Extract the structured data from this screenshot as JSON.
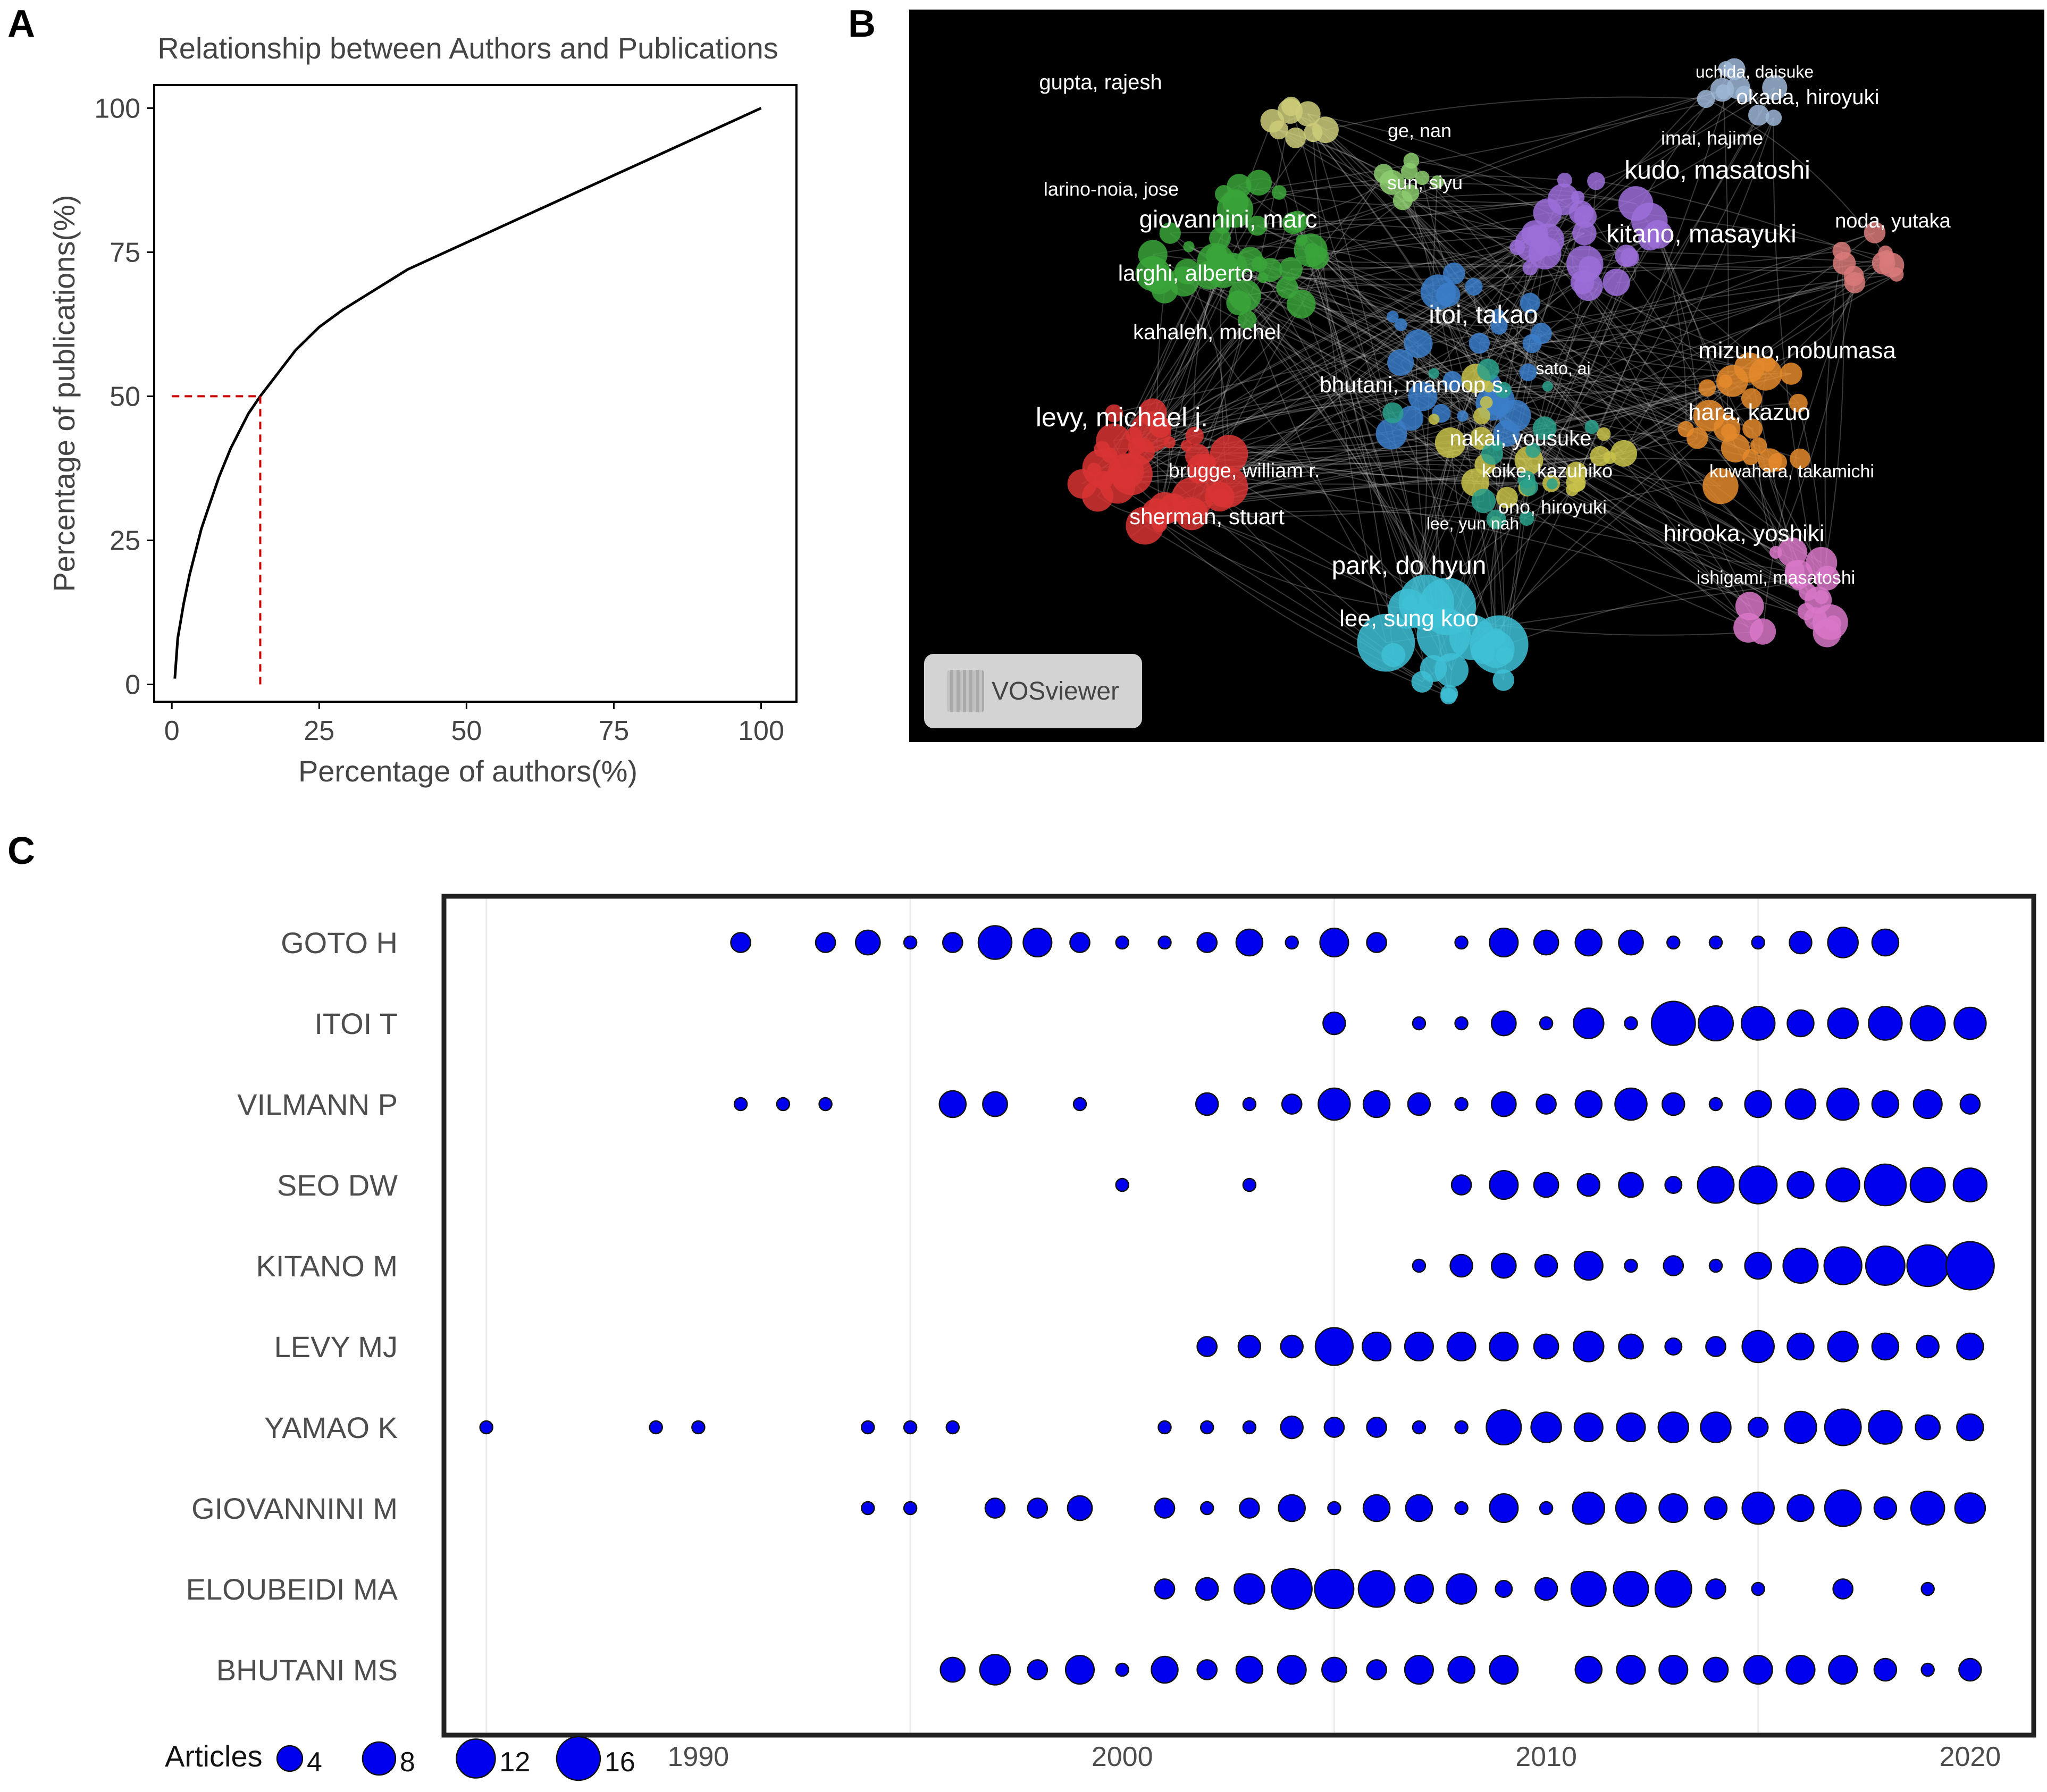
{
  "panels": {
    "a": "A",
    "b": "B",
    "c": "C"
  },
  "chart_data": [
    {
      "type": "line",
      "title": "Relationship between Authors and Publications",
      "xlabel": "Percentage of authors(%)",
      "ylabel": "Percentage of publications(%)",
      "xlim": [
        -3,
        106
      ],
      "ylim": [
        -3,
        104
      ],
      "xticks": [
        "0",
        "25",
        "50",
        "75",
        "100"
      ],
      "yticks": [
        "0",
        "25",
        "50",
        "75",
        "100"
      ],
      "x": [
        0.5,
        1,
        2,
        3,
        4,
        5,
        6,
        7,
        8,
        9,
        10,
        11,
        12,
        13,
        14,
        15,
        18,
        21,
        25,
        29,
        40,
        55,
        70,
        85,
        100
      ],
      "y": [
        1,
        8,
        14,
        19,
        23,
        27,
        30,
        33,
        36,
        38.5,
        41,
        43,
        45,
        47,
        48.5,
        50,
        54,
        58,
        62,
        65,
        72,
        79,
        86,
        93,
        100
      ],
      "reference_point": {
        "x": 15,
        "y": 50
      },
      "line_color": "#000000",
      "reference_color": "#cc0000"
    },
    {
      "type": "scatter",
      "software": "VOSviewer",
      "labels": [
        "gupta, rajesh",
        "ge, nan",
        "sun, siyu",
        "uchida, daisuke",
        "okada, hiroyuki",
        "imai, hajime",
        "kudo, masatoshi",
        "larino-noia, jose",
        "giovannini, marc",
        "noda, yutaka",
        "kitano, masayuki",
        "larghi, alberto",
        "itoi, takao",
        "kahaleh, michel",
        "mizuno, nobumasa",
        "sato, ai",
        "bhutani, manoop s.",
        "levy, michael j.",
        "hara, kazuo",
        "nakai, yousuke",
        "kuwahara, takamichi",
        "brugge, william r.",
        "koike, kazuhiko",
        "ono, hiroyuki",
        "sherman, stuart",
        "lee, yun nah",
        "hirooka, yoshiki",
        "park, do hyun",
        "ishigami, masatoshi",
        "lee, sung koo"
      ],
      "cluster_colors": [
        "#d93434",
        "#3aa53a",
        "#3b7ec9",
        "#c8c24a",
        "#9b6ed8",
        "#2aa08c",
        "#e48a2c",
        "#d877c8",
        "#d97a7a",
        "#9db7d6",
        "#cccc7a",
        "#8ccc6e",
        "#3ec1d6"
      ]
    },
    {
      "type": "scatter",
      "authors": [
        "GOTO H",
        "ITOI T",
        "VILMANN P",
        "SEO DW",
        "KITANO M",
        "LEVY MJ",
        "YAMAO K",
        "GIOVANNINI M",
        "ELOUBEIDI MA",
        "BHUTANI MS"
      ],
      "xticks": [
        "1990",
        "2000",
        "2010",
        "2020"
      ],
      "xlim": [
        1984,
        2021.5
      ],
      "legend_title": "Articles",
      "legend_sizes": [
        4,
        8,
        12,
        16
      ],
      "legend_labels": [
        "4",
        "8",
        "12",
        "16"
      ],
      "dot_color": "#0000ee",
      "points": {
        "GOTO H": [
          [
            1991,
            3
          ],
          [
            1993,
            3
          ],
          [
            1994,
            5
          ],
          [
            1995,
            1
          ],
          [
            1996,
            3
          ],
          [
            1997,
            10
          ],
          [
            1998,
            7
          ],
          [
            1999,
            3
          ],
          [
            2000,
            1
          ],
          [
            2001,
            1
          ],
          [
            2002,
            3
          ],
          [
            2003,
            6
          ],
          [
            2004,
            1
          ],
          [
            2005,
            7
          ],
          [
            2006,
            3
          ],
          [
            2008,
            1
          ],
          [
            2009,
            7
          ],
          [
            2010,
            5
          ],
          [
            2011,
            6
          ],
          [
            2012,
            5
          ],
          [
            2013,
            1
          ],
          [
            2014,
            1
          ],
          [
            2015,
            1
          ],
          [
            2016,
            4
          ],
          [
            2017,
            8
          ],
          [
            2018,
            6
          ]
        ],
        "ITOI T": [
          [
            2005,
            4
          ],
          [
            2007,
            1
          ],
          [
            2008,
            1
          ],
          [
            2009,
            5
          ],
          [
            2010,
            1
          ],
          [
            2011,
            8
          ],
          [
            2012,
            1
          ],
          [
            2013,
            18
          ],
          [
            2014,
            11
          ],
          [
            2015,
            10
          ],
          [
            2016,
            6
          ],
          [
            2017,
            8
          ],
          [
            2018,
            10
          ],
          [
            2019,
            11
          ],
          [
            2020,
            9
          ]
        ],
        "VILMANN P": [
          [
            1991,
            1
          ],
          [
            1992,
            1
          ],
          [
            1993,
            1
          ],
          [
            1996,
            6
          ],
          [
            1997,
            5
          ],
          [
            1999,
            1
          ],
          [
            2002,
            4
          ],
          [
            2003,
            1
          ],
          [
            2004,
            3
          ],
          [
            2005,
            9
          ],
          [
            2006,
            6
          ],
          [
            2007,
            4
          ],
          [
            2008,
            1
          ],
          [
            2009,
            5
          ],
          [
            2010,
            3
          ],
          [
            2011,
            6
          ],
          [
            2012,
            9
          ],
          [
            2013,
            4
          ],
          [
            2014,
            1
          ],
          [
            2015,
            6
          ],
          [
            2016,
            8
          ],
          [
            2017,
            9
          ],
          [
            2018,
            6
          ],
          [
            2019,
            7
          ],
          [
            2020,
            3
          ]
        ],
        "SEO DW": [
          [
            2000,
            1
          ],
          [
            2003,
            1
          ],
          [
            2008,
            3
          ],
          [
            2009,
            7
          ],
          [
            2010,
            5
          ],
          [
            2011,
            4
          ],
          [
            2012,
            5
          ],
          [
            2013,
            2
          ],
          [
            2014,
            12
          ],
          [
            2015,
            13
          ],
          [
            2016,
            6
          ],
          [
            2017,
            10
          ],
          [
            2018,
            16
          ],
          [
            2019,
            11
          ],
          [
            2020,
            10
          ]
        ],
        "KITANO M": [
          [
            2007,
            1
          ],
          [
            2008,
            4
          ],
          [
            2009,
            5
          ],
          [
            2010,
            4
          ],
          [
            2011,
            7
          ],
          [
            2012,
            1
          ],
          [
            2013,
            3
          ],
          [
            2014,
            1
          ],
          [
            2015,
            6
          ],
          [
            2016,
            11
          ],
          [
            2017,
            13
          ],
          [
            2018,
            14
          ],
          [
            2019,
            16
          ],
          [
            2020,
            22
          ]
        ],
        "LEVY MJ": [
          [
            2002,
            3
          ],
          [
            2003,
            4
          ],
          [
            2004,
            4
          ],
          [
            2005,
            13
          ],
          [
            2006,
            7
          ],
          [
            2007,
            7
          ],
          [
            2008,
            7
          ],
          [
            2009,
            7
          ],
          [
            2010,
            5
          ],
          [
            2011,
            8
          ],
          [
            2012,
            5
          ],
          [
            2013,
            2
          ],
          [
            2014,
            3
          ],
          [
            2015,
            9
          ],
          [
            2016,
            6
          ],
          [
            2017,
            8
          ],
          [
            2018,
            6
          ],
          [
            2019,
            4
          ],
          [
            2020,
            6
          ]
        ],
        "YAMAO K": [
          [
            1985,
            1
          ],
          [
            1989,
            1
          ],
          [
            1990,
            1
          ],
          [
            1994,
            1
          ],
          [
            1995,
            1
          ],
          [
            1996,
            1
          ],
          [
            2001,
            1
          ],
          [
            2002,
            1
          ],
          [
            2003,
            1
          ],
          [
            2004,
            4
          ],
          [
            2005,
            3
          ],
          [
            2006,
            3
          ],
          [
            2007,
            1
          ],
          [
            2008,
            1
          ],
          [
            2009,
            11
          ],
          [
            2010,
            8
          ],
          [
            2011,
            7
          ],
          [
            2012,
            7
          ],
          [
            2013,
            8
          ],
          [
            2014,
            8
          ],
          [
            2015,
            3
          ],
          [
            2016,
            9
          ],
          [
            2017,
            12
          ],
          [
            2018,
            10
          ],
          [
            2019,
            5
          ],
          [
            2020,
            6
          ]
        ],
        "GIOVANNINI M": [
          [
            1994,
            1
          ],
          [
            1995,
            1
          ],
          [
            1997,
            3
          ],
          [
            1998,
            3
          ],
          [
            1999,
            5
          ],
          [
            2001,
            3
          ],
          [
            2002,
            1
          ],
          [
            2003,
            3
          ],
          [
            2004,
            6
          ],
          [
            2005,
            1
          ],
          [
            2006,
            6
          ],
          [
            2007,
            6
          ],
          [
            2008,
            1
          ],
          [
            2009,
            7
          ],
          [
            2010,
            1
          ],
          [
            2011,
            9
          ],
          [
            2012,
            8
          ],
          [
            2013,
            7
          ],
          [
            2014,
            4
          ],
          [
            2015,
            9
          ],
          [
            2016,
            6
          ],
          [
            2017,
            12
          ],
          [
            2018,
            4
          ],
          [
            2019,
            10
          ],
          [
            2020,
            8
          ]
        ],
        "ELOUBEIDI MA": [
          [
            2001,
            3
          ],
          [
            2002,
            4
          ],
          [
            2003,
            8
          ],
          [
            2004,
            15
          ],
          [
            2005,
            14
          ],
          [
            2006,
            12
          ],
          [
            2007,
            7
          ],
          [
            2008,
            8
          ],
          [
            2009,
            2
          ],
          [
            2010,
            4
          ],
          [
            2011,
            11
          ],
          [
            2012,
            11
          ],
          [
            2013,
            12
          ],
          [
            2014,
            3
          ],
          [
            2015,
            1
          ],
          [
            2017,
            3
          ],
          [
            2019,
            1
          ]
        ],
        "BHUTANI MS": [
          [
            1996,
            5
          ],
          [
            1997,
            8
          ],
          [
            1998,
            3
          ],
          [
            1999,
            7
          ],
          [
            2000,
            1
          ],
          [
            2001,
            6
          ],
          [
            2002,
            3
          ],
          [
            2003,
            6
          ],
          [
            2004,
            7
          ],
          [
            2005,
            5
          ],
          [
            2006,
            3
          ],
          [
            2007,
            7
          ],
          [
            2008,
            6
          ],
          [
            2009,
            7
          ],
          [
            2011,
            6
          ],
          [
            2012,
            7
          ],
          [
            2013,
            7
          ],
          [
            2014,
            5
          ],
          [
            2015,
            7
          ],
          [
            2016,
            7
          ],
          [
            2017,
            7
          ],
          [
            2018,
            4
          ],
          [
            2019,
            1
          ],
          [
            2020,
            4
          ]
        ]
      }
    }
  ]
}
